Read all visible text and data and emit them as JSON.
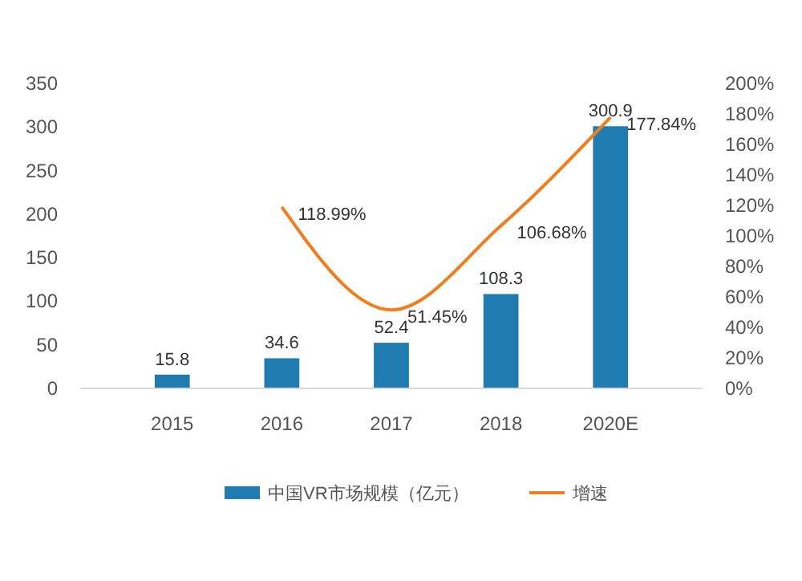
{
  "chart_data": {
    "type": "bar",
    "categories": [
      "2015",
      "2016",
      "2017",
      "2018",
      "2020E"
    ],
    "series": [
      {
        "name": "中国VR市场规模（亿元）",
        "color": "#1f7bb0",
        "values": [
          15.8,
          34.6,
          52.4,
          108.3,
          300.9
        ],
        "value_labels": [
          "15.8",
          "34.6",
          "52.4",
          "108.3",
          "300.9"
        ]
      },
      {
        "name": "增速",
        "type": "line",
        "axis": "y2",
        "color": "#f07d1e",
        "values": [
          null,
          118.99,
          51.45,
          106.68,
          177.84
        ],
        "value_labels": [
          null,
          "118.99%",
          "51.45%",
          "106.68%",
          "177.84%"
        ]
      }
    ],
    "ylim": [
      0,
      350
    ],
    "yticks": [
      0,
      50,
      100,
      150,
      200,
      250,
      300,
      350
    ],
    "y2lim": [
      0,
      200
    ],
    "y2ticks": [
      {
        "value": 0,
        "label": "0%"
      },
      {
        "value": 20,
        "label": "20%"
      },
      {
        "value": 40,
        "label": "40%"
      },
      {
        "value": 60,
        "label": "60%"
      },
      {
        "value": 80,
        "label": "80%"
      },
      {
        "value": 100,
        "label": "100%"
      },
      {
        "value": 120,
        "label": "120%"
      },
      {
        "value": 140,
        "label": "140%"
      },
      {
        "value": 160,
        "label": "160%"
      },
      {
        "value": 180,
        "label": "180%"
      },
      {
        "value": 200,
        "label": "200%"
      }
    ],
    "legend": "bottom",
    "grid": false,
    "marker": "none",
    "line_style": "solid"
  }
}
